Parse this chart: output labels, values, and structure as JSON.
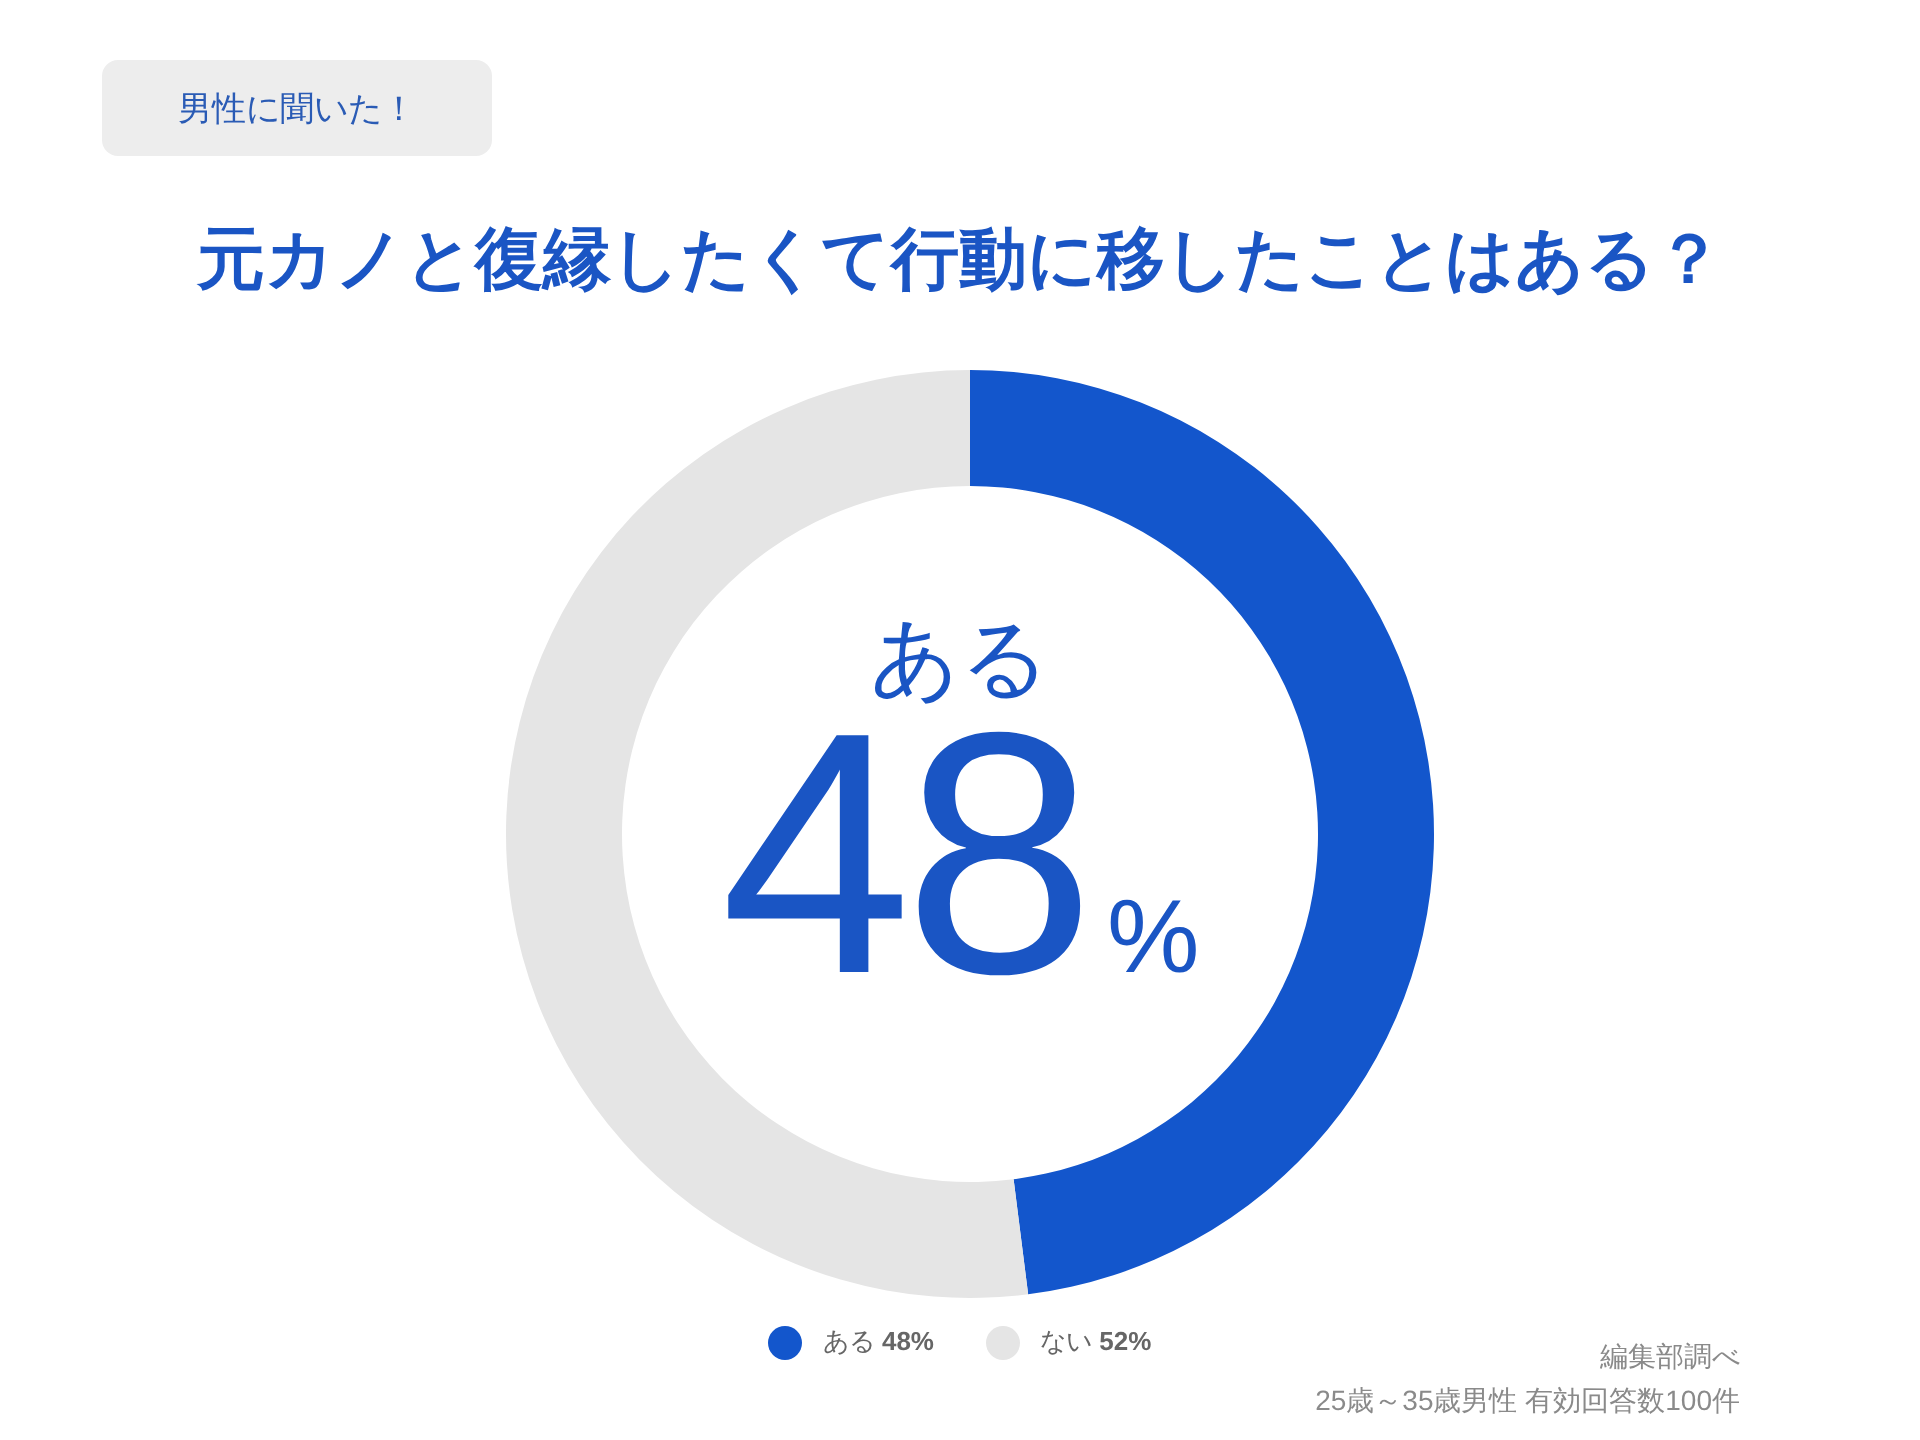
{
  "chart_data": {
    "type": "donut",
    "subtitle": "男性に聞いた！",
    "title": "元カノと復縁したくて行動に移したことはある？",
    "categories": [
      "ある",
      "ない"
    ],
    "values": [
      48,
      52
    ],
    "value_labels": [
      "48%",
      "52%"
    ],
    "colors": [
      "#1356cc",
      "#e5e5e5"
    ],
    "legend": "bottom",
    "annotations": [
      "編集部調べ",
      "25歳～35歳男性 有効回答数100件"
    ]
  }
}
